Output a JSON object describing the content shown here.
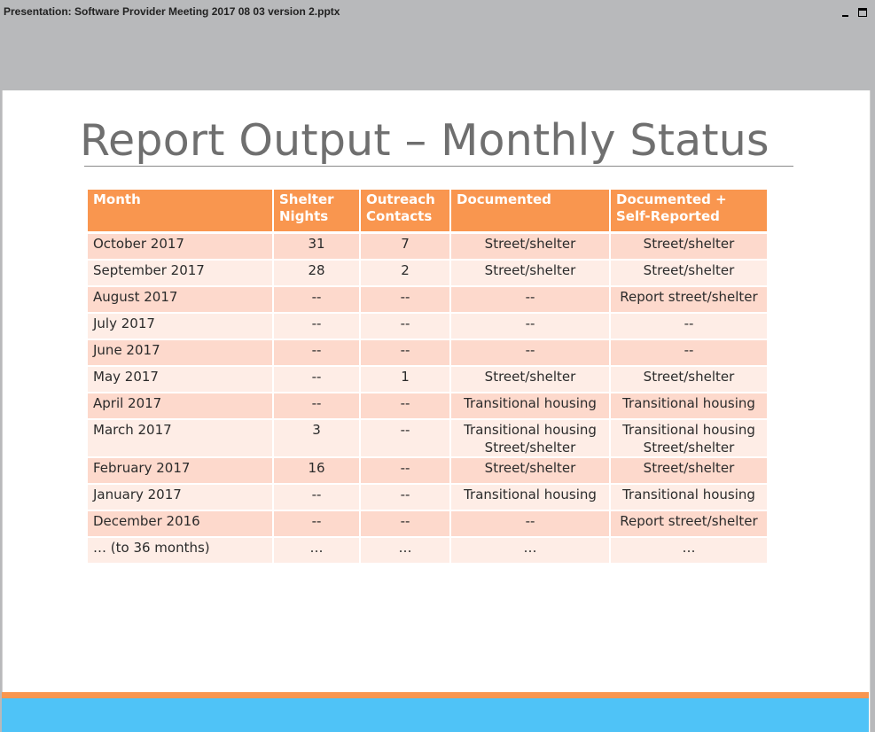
{
  "window": {
    "title": "Presentation: Software Provider Meeting 2017 08 03 version 2.pptx"
  },
  "slide": {
    "title": "Report Output – Monthly Status",
    "colors": {
      "header": "#f9964f",
      "row_odd": "#fdd9cc",
      "row_even": "#feede6",
      "footer_orange": "#f9964f",
      "footer_blue": "#4fc3f7"
    }
  },
  "table": {
    "headers": [
      "Month",
      "Shelter Nights",
      "Outreach Contacts",
      "Documented",
      "Documented + Self-Reported"
    ],
    "rows": [
      [
        "October 2017",
        "31",
        "7",
        "Street/shelter",
        "Street/shelter"
      ],
      [
        "September 2017",
        "28",
        "2",
        "Street/shelter",
        "Street/shelter"
      ],
      [
        "August 2017",
        "--",
        "--",
        "--",
        "Report street/shelter"
      ],
      [
        "July 2017",
        "--",
        "--",
        "--",
        "--"
      ],
      [
        "June 2017",
        "--",
        "--",
        "--",
        "--"
      ],
      [
        "May 2017",
        "--",
        "1",
        "Street/shelter",
        "Street/shelter"
      ],
      [
        "April 2017",
        "--",
        "--",
        "Transitional housing",
        "Transitional housing"
      ],
      [
        "March 2017",
        "3",
        "--",
        "Transitional housing\nStreet/shelter",
        "Transitional housing\nStreet/shelter"
      ],
      [
        "February 2017",
        "16",
        "--",
        "Street/shelter",
        "Street/shelter"
      ],
      [
        "January 2017",
        "--",
        "--",
        "Transitional housing",
        "Transitional housing"
      ],
      [
        "December 2016",
        "--",
        "--",
        "--",
        "Report street/shelter"
      ],
      [
        "… (to 36 months)",
        "…",
        "…",
        "…",
        "…"
      ]
    ]
  }
}
